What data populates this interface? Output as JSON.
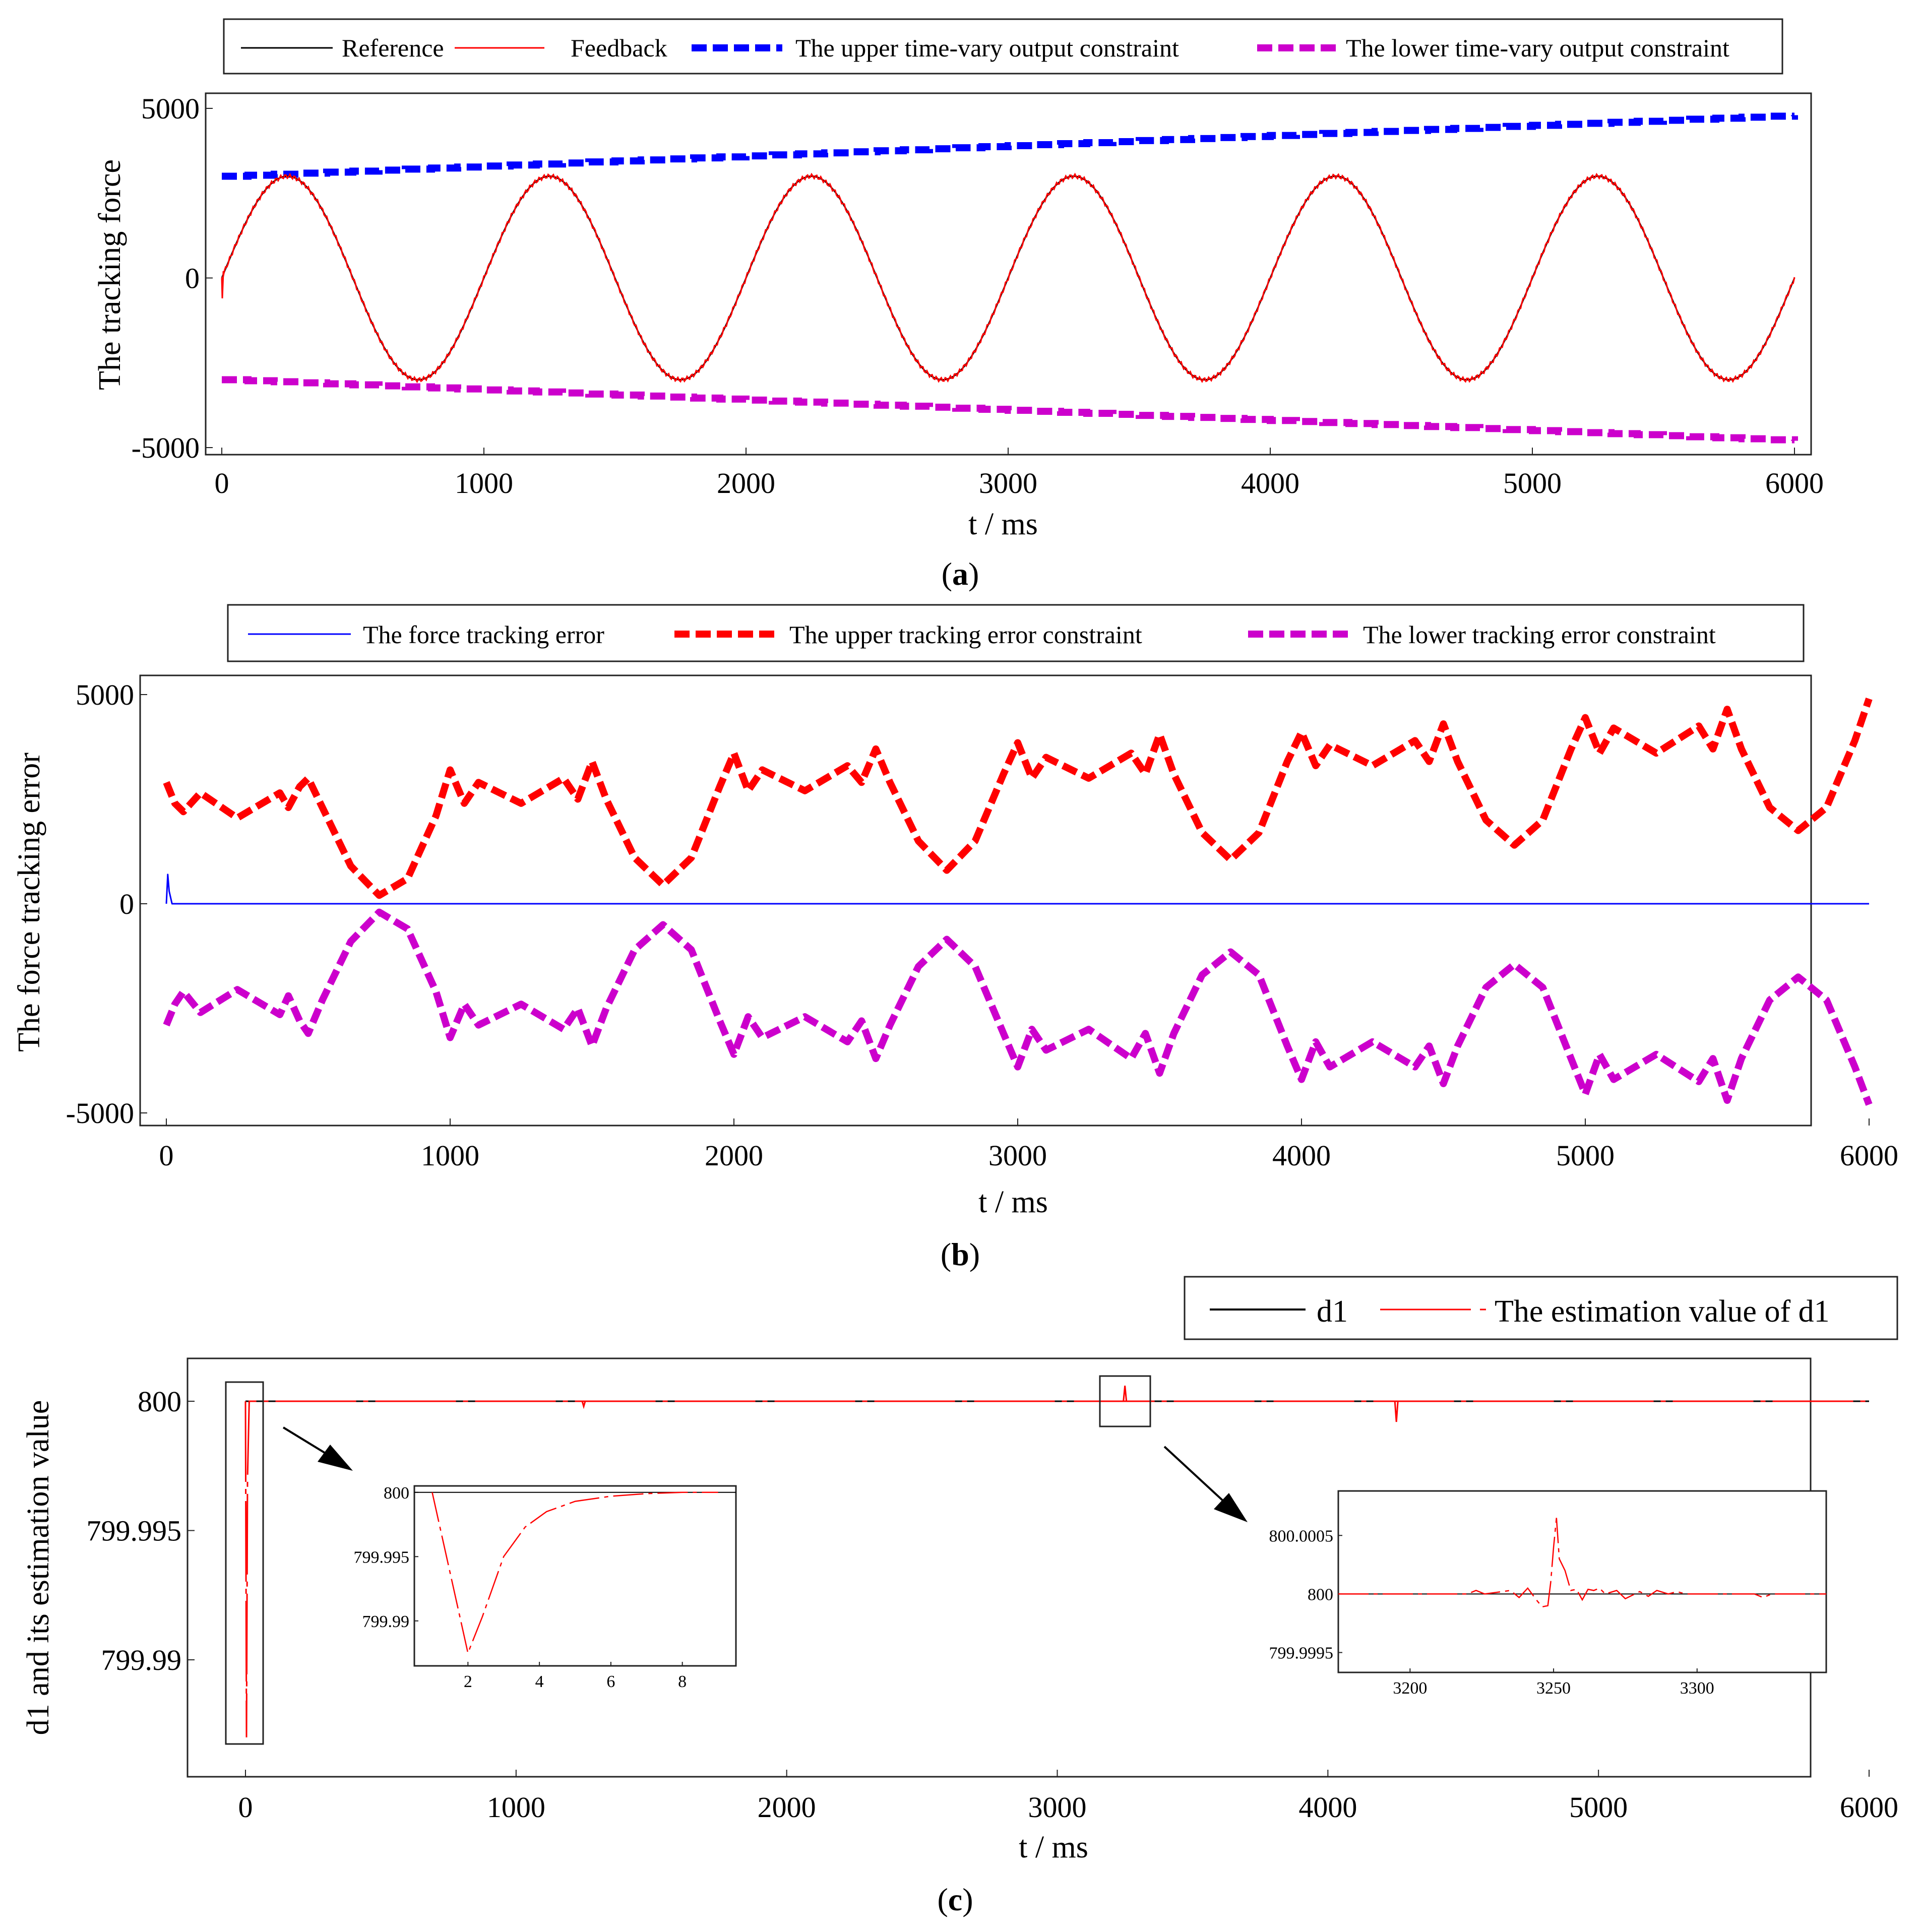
{
  "colors": {
    "reference": "#000000",
    "feedback": "#ff0000",
    "upper_a": "#0000ff",
    "lower_a": "#cc00cc",
    "error": "#0000ff",
    "upper_b": "#ff0000",
    "lower_b": "#cc00cc",
    "d1": "#000000",
    "d1_est": "#ff0000"
  },
  "chart_data": [
    {
      "id": "a",
      "type": "line",
      "panel_label": "a",
      "xlabel": "t / ms",
      "ylabel": "The tracking force",
      "xlim": [
        0,
        6000
      ],
      "ylim": [
        -5000,
        5000
      ],
      "xticks": [
        "0",
        "1000",
        "2000",
        "3000",
        "4000",
        "5000",
        "6000"
      ],
      "yticks": [
        "5000",
        "0",
        "-5000"
      ],
      "legend": [
        "Reference",
        "Feedback",
        "The upper time-vary output constraint",
        "The lower time-vary output constraint"
      ],
      "series": [
        {
          "name": "Reference",
          "kind": "sine",
          "amplitude": 3000,
          "period_ms": 1000
        },
        {
          "name": "Feedback",
          "kind": "sine",
          "amplitude": 3000,
          "period_ms": 1000
        },
        {
          "name": "The upper time-vary output constraint",
          "x": [
            0,
            6000
          ],
          "values": [
            3000,
            4800
          ]
        },
        {
          "name": "The lower time-vary output constraint",
          "x": [
            0,
            6000
          ],
          "values": [
            -3000,
            -4800
          ]
        }
      ]
    },
    {
      "id": "b",
      "type": "line",
      "panel_label": "b",
      "xlabel": "t / ms",
      "ylabel": "The force tracking error",
      "xlim": [
        0,
        6000
      ],
      "ylim": [
        -5000,
        5000
      ],
      "xticks": [
        "0",
        "1000",
        "2000",
        "3000",
        "4000",
        "5000",
        "6000"
      ],
      "yticks": [
        "5000",
        "0",
        "-5000"
      ],
      "legend": [
        "The force tracking error",
        "The upper tracking error constraint",
        "The lower tracking error constraint"
      ],
      "series": [
        {
          "name": "The force tracking error",
          "x": [
            0,
            5,
            10,
            20,
            6000
          ],
          "values": [
            0,
            700,
            300,
            0,
            0
          ]
        },
        {
          "name": "The upper tracking error constraint",
          "x": [
            0,
            30,
            60,
            120,
            250,
            400,
            430,
            470,
            500,
            550,
            650,
            750,
            850,
            950,
            1000,
            1050,
            1100,
            1250,
            1400,
            1450,
            1500,
            1550,
            1650,
            1750,
            1850,
            1950,
            2000,
            2050,
            2100,
            2250,
            2400,
            2450,
            2500,
            2550,
            2650,
            2750,
            2850,
            2950,
            3000,
            3050,
            3100,
            3250,
            3400,
            3450,
            3500,
            3550,
            3650,
            3750,
            3850,
            3950,
            4000,
            4050,
            4100,
            4250,
            4400,
            4450,
            4500,
            4550,
            4650,
            4750,
            4850,
            4950,
            5000,
            5050,
            5100,
            5250,
            5400,
            5450,
            5500,
            5550,
            5650,
            5750,
            5850,
            5950,
            6000
          ],
          "values": [
            2900,
            2400,
            2200,
            2650,
            2050,
            2650,
            2300,
            2800,
            3000,
            2300,
            900,
            200,
            600,
            2100,
            3200,
            2400,
            2900,
            2400,
            3000,
            2500,
            3400,
            2500,
            1100,
            450,
            1100,
            2800,
            3600,
            2700,
            3200,
            2700,
            3300,
            2900,
            3700,
            2900,
            1500,
            800,
            1500,
            3100,
            3850,
            3000,
            3500,
            3000,
            3600,
            3100,
            4050,
            3100,
            1700,
            1050,
            1700,
            3400,
            4100,
            3300,
            3800,
            3300,
            3900,
            3400,
            4300,
            3400,
            2000,
            1400,
            2000,
            3700,
            4450,
            3600,
            4200,
            3600,
            4250,
            3700,
            4650,
            3700,
            2300,
            1750,
            2300,
            3900,
            4900
          ]
        },
        {
          "name": "The lower tracking error constraint",
          "x": [
            0,
            30,
            60,
            120,
            250,
            400,
            430,
            470,
            500,
            550,
            650,
            750,
            850,
            950,
            1000,
            1050,
            1100,
            1250,
            1400,
            1450,
            1500,
            1550,
            1650,
            1750,
            1850,
            1950,
            2000,
            2050,
            2100,
            2250,
            2400,
            2450,
            2500,
            2550,
            2650,
            2750,
            2850,
            2950,
            3000,
            3050,
            3100,
            3250,
            3400,
            3450,
            3500,
            3550,
            3650,
            3750,
            3850,
            3950,
            4000,
            4050,
            4100,
            4250,
            4400,
            4450,
            4500,
            4550,
            4650,
            4750,
            4850,
            4950,
            5000,
            5050,
            5100,
            5250,
            5400,
            5450,
            5500,
            5550,
            5650,
            5750,
            5850,
            5950,
            6000
          ],
          "values": [
            -2900,
            -2400,
            -2100,
            -2600,
            -2050,
            -2650,
            -2200,
            -2800,
            -3100,
            -2300,
            -900,
            -200,
            -600,
            -2100,
            -3200,
            -2400,
            -2900,
            -2400,
            -3000,
            -2500,
            -3400,
            -2500,
            -1100,
            -500,
            -1100,
            -2800,
            -3600,
            -2700,
            -3200,
            -2700,
            -3300,
            -2800,
            -3700,
            -2900,
            -1500,
            -850,
            -1500,
            -3100,
            -3900,
            -3000,
            -3500,
            -3000,
            -3700,
            -3100,
            -4050,
            -3100,
            -1700,
            -1150,
            -1700,
            -3400,
            -4200,
            -3300,
            -3900,
            -3300,
            -3900,
            -3400,
            -4300,
            -3400,
            -2000,
            -1450,
            -2000,
            -3700,
            -4550,
            -3600,
            -4200,
            -3600,
            -4250,
            -3700,
            -4700,
            -3700,
            -2300,
            -1750,
            -2300,
            -3900,
            -4800
          ]
        }
      ]
    },
    {
      "id": "c",
      "type": "line",
      "panel_label": "c",
      "xlabel": "t / ms",
      "ylabel": "d1 and its estimation value",
      "xlim": [
        -200,
        6100
      ],
      "ylim": [
        799.9855,
        800.0015
      ],
      "xticks": [
        "0",
        "1000",
        "2000",
        "3000",
        "4000",
        "5000",
        "6000"
      ],
      "yticks": [
        "800",
        "799.995",
        "799.99"
      ],
      "legend": [
        "d1",
        "The estimation value of d1"
      ],
      "series": [
        {
          "name": "d1",
          "x": [
            0,
            6000
          ],
          "values": [
            800,
            800
          ]
        },
        {
          "name": "The estimation value of d1",
          "x": [
            0,
            2,
            3,
            10,
            1250,
            1252,
            1254,
            3240,
            3250,
            3255,
            3262,
            4250,
            4253,
            4256,
            4260,
            6000
          ],
          "values": [
            800,
            799.987,
            799.9972,
            800,
            800,
            799.9998,
            800,
            800,
            800.0006,
            799.9999,
            800,
            800,
            799.9992,
            800.0002,
            800,
            800
          ]
        }
      ],
      "insets": [
        {
          "id": "zoom-start",
          "xlim": [
            0.5,
            9.5
          ],
          "ylim": [
            799.9865,
            800.0005
          ],
          "xticks": [
            "2",
            "4",
            "6",
            "8"
          ],
          "yticks": [
            "800",
            "799.995",
            "799.99"
          ],
          "series": [
            {
              "name": "d1",
              "x": [
                0.5,
                9.5
              ],
              "values": [
                800,
                800
              ]
            },
            {
              "name": "The estimation value of d1",
              "x": [
                1.0,
                1.4,
                2.0,
                2.4,
                3.0,
                3.6,
                4.2,
                5.0,
                6.0,
                7.0,
                8.0,
                9.0
              ],
              "values": [
                800,
                799.995,
                799.9875,
                799.9903,
                799.995,
                799.9973,
                799.9985,
                799.9993,
                799.9997,
                799.9999,
                800,
                800
              ]
            }
          ]
        },
        {
          "id": "zoom-3250",
          "xlim": [
            3175,
            3345
          ],
          "ylim": [
            799.99933,
            800.00088
          ],
          "xticks": [
            "3200",
            "3250",
            "3300"
          ],
          "yticks": [
            "800.0005",
            "800",
            "799.9995"
          ],
          "series": [
            {
              "name": "d1",
              "x": [
                3175,
                3345
              ],
              "values": [
                800,
                800
              ]
            },
            {
              "name": "The estimation value of d1",
              "x": [
                3175,
                3220,
                3223,
                3226,
                3235,
                3238,
                3241,
                3244,
                3246,
                3248,
                3249,
                3250,
                3251,
                3252,
                3254,
                3256,
                3258,
                3260,
                3262,
                3264,
                3266,
                3268,
                3272,
                3275,
                3280,
                3283,
                3286,
                3290,
                3293,
                3296,
                3320,
                3323,
                3326,
                3345
              ],
              "values": [
                800,
                800,
                800.00003,
                800,
                800.00003,
                799.99997,
                800.00005,
                799.99995,
                799.99989,
                799.9999,
                800.0001,
                800.0004,
                800.00065,
                800.0003,
                800.0002,
                800.00003,
                800.00004,
                799.99995,
                800.00004,
                800.00003,
                800.00005,
                800,
                800.00003,
                799.99996,
                800.00002,
                799.99998,
                800.00003,
                800,
                800.00002,
                800,
                800,
                799.99997,
                800,
                800
              ]
            }
          ]
        }
      ]
    }
  ]
}
